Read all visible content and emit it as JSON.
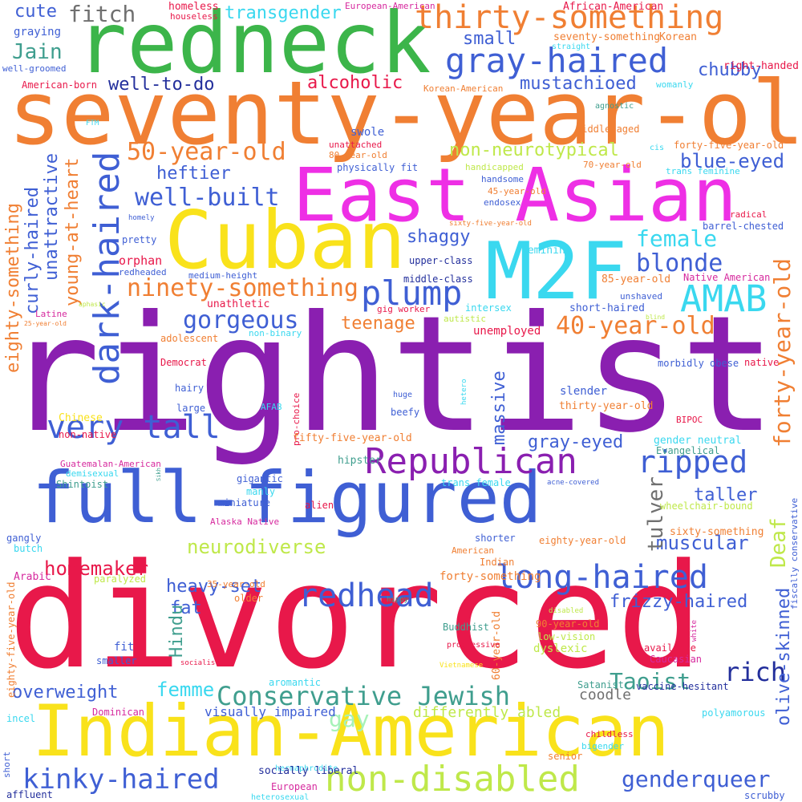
{
  "palette": {
    "red": "#e8184a",
    "purple": "#8a1fb0",
    "orange": "#f07f33",
    "blue": "#3f5fd4",
    "green": "#3cb54a",
    "pink": "#ee2fe5",
    "yellow": "#f9e21b",
    "cyan": "#3ad8ef",
    "lime": "#bfe84a",
    "teal": "#3f9e8e",
    "navy": "#232f9c",
    "gray": "#707070",
    "lightgreen": "#a6f2b8",
    "magenta": "#d62a9e"
  },
  "words": [
    {
      "text": "rightist",
      "color": "purple"
    },
    {
      "text": "divorced",
      "color": "red"
    },
    {
      "text": "seventy-year-old",
      "color": "orange"
    },
    {
      "text": "redneck",
      "color": "green"
    },
    {
      "text": "East Asian",
      "color": "pink"
    },
    {
      "text": "Cuban",
      "color": "yellow"
    },
    {
      "text": "M2F",
      "color": "cyan"
    },
    {
      "text": "full-figured",
      "color": "blue"
    },
    {
      "text": "Indian-American",
      "color": "yellow"
    },
    {
      "text": "thirty-something",
      "color": "orange"
    },
    {
      "text": "gray-haired",
      "color": "blue"
    },
    {
      "text": "dark-haired",
      "color": "blue"
    },
    {
      "text": "plump",
      "color": "blue"
    },
    {
      "text": "AMAB",
      "color": "cyan"
    },
    {
      "text": "Republican",
      "color": "purple"
    },
    {
      "text": "very tall",
      "color": "blue"
    },
    {
      "text": "ninety-something",
      "color": "orange"
    },
    {
      "text": "long-haired",
      "color": "blue"
    },
    {
      "text": "redhead",
      "color": "blue"
    },
    {
      "text": "non-disabled",
      "color": "lime"
    },
    {
      "text": "Conservative Jewish",
      "color": "teal"
    },
    {
      "text": "kinky-haired",
      "color": "blue"
    },
    {
      "text": "ripped",
      "color": "blue"
    },
    {
      "text": "forty-year-old",
      "color": "orange"
    },
    {
      "text": "40-year-old",
      "color": "orange"
    },
    {
      "text": "gorgeous",
      "color": "blue"
    },
    {
      "text": "50-year-old",
      "color": "orange"
    },
    {
      "text": "well-built",
      "color": "blue"
    },
    {
      "text": "blonde",
      "color": "blue"
    },
    {
      "text": "female",
      "color": "cyan"
    },
    {
      "text": "genderqueer",
      "color": "blue"
    },
    {
      "text": "transgender",
      "color": "cyan"
    },
    {
      "text": "fitch",
      "color": "gray"
    },
    {
      "text": "Jain",
      "color": "teal"
    },
    {
      "text": "cute",
      "color": "blue"
    },
    {
      "text": "heftier",
      "color": "blue"
    },
    {
      "text": "homemaker",
      "color": "red"
    },
    {
      "text": "neurodiverse",
      "color": "lime"
    },
    {
      "text": "muscular",
      "color": "blue"
    },
    {
      "text": "alcoholic",
      "color": "red"
    },
    {
      "text": "mustachioed",
      "color": "blue"
    },
    {
      "text": "chubby",
      "color": "blue"
    },
    {
      "text": "non-neurotypical",
      "color": "lime"
    },
    {
      "text": "blue-eyed",
      "color": "blue"
    },
    {
      "text": "shaggy",
      "color": "blue"
    },
    {
      "text": "teenage",
      "color": "orange"
    },
    {
      "text": "heavy-set",
      "color": "blue"
    },
    {
      "text": "frizzy-haired",
      "color": "blue"
    },
    {
      "text": "rich",
      "color": "navy"
    },
    {
      "text": "Taoist",
      "color": "teal"
    },
    {
      "text": "femme",
      "color": "cyan"
    },
    {
      "text": "overweight",
      "color": "blue"
    },
    {
      "text": "gay",
      "color": "lightgreen"
    },
    {
      "text": "eighty-something",
      "color": "orange"
    },
    {
      "text": "curly-haired",
      "color": "blue"
    },
    {
      "text": "unattractive",
      "color": "blue"
    },
    {
      "text": "young-at-heart",
      "color": "orange"
    },
    {
      "text": "tulver",
      "color": "gray"
    },
    {
      "text": "Deaf",
      "color": "lime"
    },
    {
      "text": "olive-skinned",
      "color": "blue"
    },
    {
      "text": "massive",
      "color": "blue"
    },
    {
      "text": "gray-eyed",
      "color": "blue"
    },
    {
      "text": "taller",
      "color": "blue"
    },
    {
      "text": "well-to-do",
      "color": "navy"
    },
    {
      "text": "small",
      "color": "blue"
    },
    {
      "text": "fat",
      "color": "blue"
    },
    {
      "text": "Hindu",
      "color": "teal"
    },
    {
      "text": "coodle",
      "color": "gray"
    },
    {
      "text": "differently abled",
      "color": "lime"
    },
    {
      "text": "visually impaired",
      "color": "blue"
    },
    {
      "text": "homeless",
      "color": "red"
    },
    {
      "text": "houseless",
      "color": "red"
    },
    {
      "text": "European-American",
      "color": "magenta"
    },
    {
      "text": "African-American",
      "color": "red"
    },
    {
      "text": "seventy-something",
      "color": "orange"
    },
    {
      "text": "Korean",
      "color": "orange"
    },
    {
      "text": "straight",
      "color": "cyan"
    },
    {
      "text": "right-handed",
      "color": "red"
    },
    {
      "text": "graying",
      "color": "blue"
    },
    {
      "text": "well-groomed",
      "color": "blue"
    },
    {
      "text": "American-born",
      "color": "red"
    },
    {
      "text": "Korean-American",
      "color": "orange"
    },
    {
      "text": "womanly",
      "color": "cyan"
    },
    {
      "text": "agnostic",
      "color": "teal"
    },
    {
      "text": "middle-aged",
      "color": "orange"
    },
    {
      "text": "FTM",
      "color": "cyan"
    },
    {
      "text": "unattached",
      "color": "red"
    },
    {
      "text": "80-year-old",
      "color": "orange"
    },
    {
      "text": "swole",
      "color": "blue"
    },
    {
      "text": "cis",
      "color": "cyan"
    },
    {
      "text": "forty-five-year-old",
      "color": "orange"
    },
    {
      "text": "physically fit",
      "color": "blue"
    },
    {
      "text": "handicapped",
      "color": "lime"
    },
    {
      "text": "70-year-old",
      "color": "orange"
    },
    {
      "text": "trans feminine",
      "color": "cyan"
    },
    {
      "text": "handsome",
      "color": "blue"
    },
    {
      "text": "45-year-old",
      "color": "orange"
    },
    {
      "text": "endosex",
      "color": "blue"
    },
    {
      "text": "sixty-five-year-old",
      "color": "orange"
    },
    {
      "text": "homely",
      "color": "blue"
    },
    {
      "text": "radical",
      "color": "red"
    },
    {
      "text": "barrel-chested",
      "color": "blue"
    },
    {
      "text": "pretty",
      "color": "blue"
    },
    {
      "text": "feminine",
      "color": "cyan"
    },
    {
      "text": "orphan",
      "color": "red"
    },
    {
      "text": "upper-class",
      "color": "navy"
    },
    {
      "text": "redheaded",
      "color": "blue"
    },
    {
      "text": "medium-height",
      "color": "blue"
    },
    {
      "text": "middle-class",
      "color": "navy"
    },
    {
      "text": "85-year-old",
      "color": "orange"
    },
    {
      "text": "Native American",
      "color": "magenta"
    },
    {
      "text": "unathletic",
      "color": "red"
    },
    {
      "text": "unshaved",
      "color": "blue"
    },
    {
      "text": "Latine",
      "color": "magenta"
    },
    {
      "text": "25-year-old",
      "color": "orange"
    },
    {
      "text": "gig worker",
      "color": "red"
    },
    {
      "text": "intersex",
      "color": "cyan"
    },
    {
      "text": "aphasic",
      "color": "lime"
    },
    {
      "text": "short-haired",
      "color": "blue"
    },
    {
      "text": "blind",
      "color": "lime"
    },
    {
      "text": "non-binary",
      "color": "cyan"
    },
    {
      "text": "autistic",
      "color": "lime"
    },
    {
      "text": "unemployed",
      "color": "red"
    },
    {
      "text": "adolescent",
      "color": "orange"
    },
    {
      "text": "Democrat",
      "color": "red"
    },
    {
      "text": "morbidly obese",
      "color": "blue"
    },
    {
      "text": "native",
      "color": "red"
    },
    {
      "text": "hairy",
      "color": "blue"
    },
    {
      "text": "large",
      "color": "blue"
    },
    {
      "text": "huge",
      "color": "blue"
    },
    {
      "text": "hetero",
      "color": "cyan"
    },
    {
      "text": "slender",
      "color": "blue"
    },
    {
      "text": "thirty-year-old",
      "color": "orange"
    },
    {
      "text": "Chinese",
      "color": "yellow"
    },
    {
      "text": "AFAB",
      "color": "cyan"
    },
    {
      "text": "pro-choice",
      "color": "red"
    },
    {
      "text": "beefy",
      "color": "blue"
    },
    {
      "text": "BIPOC",
      "color": "red"
    },
    {
      "text": "non-native",
      "color": "red"
    },
    {
      "text": "fifty-five-year-old",
      "color": "orange"
    },
    {
      "text": "gender neutral",
      "color": "cyan"
    },
    {
      "text": "Guatemalan-American",
      "color": "magenta"
    },
    {
      "text": "demisexual",
      "color": "cyan"
    },
    {
      "text": "hipster",
      "color": "teal"
    },
    {
      "text": "Evangelical",
      "color": "teal"
    },
    {
      "text": "Sikh",
      "color": "teal"
    },
    {
      "text": "Shintoist",
      "color": "teal"
    },
    {
      "text": "gigantic",
      "color": "blue"
    },
    {
      "text": "trans female",
      "color": "cyan"
    },
    {
      "text": "acne-covered",
      "color": "blue"
    },
    {
      "text": "fiscally conservative",
      "color": "blue"
    },
    {
      "text": "manly",
      "color": "cyan"
    },
    {
      "text": "miniature",
      "color": "blue"
    },
    {
      "text": "alien",
      "color": "red"
    },
    {
      "text": "wheelchair-bound",
      "color": "lime"
    },
    {
      "text": "Alaska Native",
      "color": "magenta"
    },
    {
      "text": "sixty-something",
      "color": "orange"
    },
    {
      "text": "gangly",
      "color": "blue"
    },
    {
      "text": "shorter",
      "color": "blue"
    },
    {
      "text": "eighty-year-old",
      "color": "orange"
    },
    {
      "text": "butch",
      "color": "cyan"
    },
    {
      "text": "American",
      "color": "orange"
    },
    {
      "text": "Indian",
      "color": "orange"
    },
    {
      "text": "Arabic",
      "color": "magenta"
    },
    {
      "text": "paralyzed",
      "color": "lime"
    },
    {
      "text": "35-year-old",
      "color": "orange"
    },
    {
      "text": "forty-something",
      "color": "orange"
    },
    {
      "text": "eighty-five-year-old",
      "color": "orange"
    },
    {
      "text": "hippy",
      "color": "teal"
    },
    {
      "text": "older",
      "color": "orange"
    },
    {
      "text": "60-year-old",
      "color": "orange"
    },
    {
      "text": "disabled",
      "color": "lime"
    },
    {
      "text": "white",
      "color": "magenta"
    },
    {
      "text": "90-year-old",
      "color": "orange"
    },
    {
      "text": "low-vision",
      "color": "lime"
    },
    {
      "text": "Buddhist",
      "color": "teal"
    },
    {
      "text": "fit",
      "color": "blue"
    },
    {
      "text": "dyslexic",
      "color": "lime"
    },
    {
      "text": "progressive",
      "color": "red"
    },
    {
      "text": "available",
      "color": "red"
    },
    {
      "text": "smaller",
      "color": "blue"
    },
    {
      "text": "Caucasian",
      "color": "magenta"
    },
    {
      "text": "socialist",
      "color": "red"
    },
    {
      "text": "Vietnamese",
      "color": "yellow"
    },
    {
      "text": "aromantic",
      "color": "cyan"
    },
    {
      "text": "Satanist",
      "color": "teal"
    },
    {
      "text": "vaccine-hesitant",
      "color": "navy"
    },
    {
      "text": "Dominican",
      "color": "magenta"
    },
    {
      "text": "polyamorous",
      "color": "cyan"
    },
    {
      "text": "incel",
      "color": "cyan"
    },
    {
      "text": "childless",
      "color": "red"
    },
    {
      "text": "bigender",
      "color": "cyan"
    },
    {
      "text": "senior",
      "color": "orange"
    },
    {
      "text": "short",
      "color": "blue"
    },
    {
      "text": "hermaphrodite",
      "color": "cyan"
    },
    {
      "text": "socially liberal",
      "color": "navy"
    },
    {
      "text": "European",
      "color": "magenta"
    },
    {
      "text": "affluent",
      "color": "navy"
    },
    {
      "text": "heterosexual",
      "color": "cyan"
    },
    {
      "text": "scrubby",
      "color": "blue"
    }
  ]
}
